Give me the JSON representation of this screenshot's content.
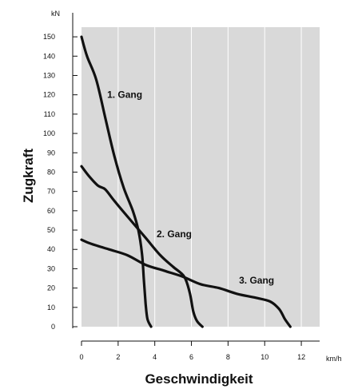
{
  "chart_data": {
    "type": "line",
    "title": "",
    "xlabel": "Geschwindigkeit",
    "ylabel": "Zugkraft",
    "x_unit": "km/h",
    "y_unit": "kN",
    "xlim": [
      0,
      13
    ],
    "ylim": [
      0,
      155
    ],
    "x_ticks": [
      0,
      2,
      4,
      6,
      8,
      10,
      12
    ],
    "y_ticks": [
      0,
      10,
      20,
      30,
      40,
      50,
      60,
      70,
      80,
      90,
      100,
      110,
      120,
      130,
      140,
      150
    ],
    "grid": "vertical",
    "plot_background": "#d9d9d9",
    "line_color": "#111111",
    "series": [
      {
        "name": "1. Gang",
        "points": [
          [
            0.0,
            150
          ],
          [
            0.3,
            140
          ],
          [
            0.8,
            128
          ],
          [
            1.3,
            108
          ],
          [
            1.8,
            88
          ],
          [
            2.3,
            72
          ],
          [
            2.8,
            60
          ],
          [
            3.1,
            50
          ],
          [
            3.3,
            38
          ],
          [
            3.4,
            25
          ],
          [
            3.5,
            12
          ],
          [
            3.6,
            4
          ],
          [
            3.8,
            0
          ]
        ]
      },
      {
        "name": "2. Gang",
        "points": [
          [
            0.0,
            83
          ],
          [
            0.4,
            78
          ],
          [
            0.9,
            73
          ],
          [
            1.3,
            71
          ],
          [
            1.8,
            65
          ],
          [
            2.6,
            56
          ],
          [
            3.5,
            46
          ],
          [
            4.3,
            37
          ],
          [
            5.0,
            31
          ],
          [
            5.6,
            26
          ],
          [
            5.9,
            18
          ],
          [
            6.1,
            8
          ],
          [
            6.3,
            3
          ],
          [
            6.6,
            0
          ]
        ]
      },
      {
        "name": "3. Gang",
        "points": [
          [
            0.0,
            45
          ],
          [
            0.5,
            43
          ],
          [
            1.5,
            40
          ],
          [
            2.5,
            37
          ],
          [
            3.5,
            32
          ],
          [
            4.5,
            29
          ],
          [
            5.5,
            26
          ],
          [
            6.5,
            22
          ],
          [
            7.5,
            20
          ],
          [
            8.5,
            17
          ],
          [
            9.5,
            15
          ],
          [
            10.3,
            13
          ],
          [
            10.8,
            9
          ],
          [
            11.1,
            4
          ],
          [
            11.4,
            0
          ]
        ]
      }
    ],
    "series_labels": [
      {
        "text": "1. Gang",
        "x": 1.4,
        "y": 120
      },
      {
        "text": "2. Gang",
        "x": 4.1,
        "y": 48
      },
      {
        "text": "3. Gang",
        "x": 8.6,
        "y": 24
      }
    ]
  }
}
